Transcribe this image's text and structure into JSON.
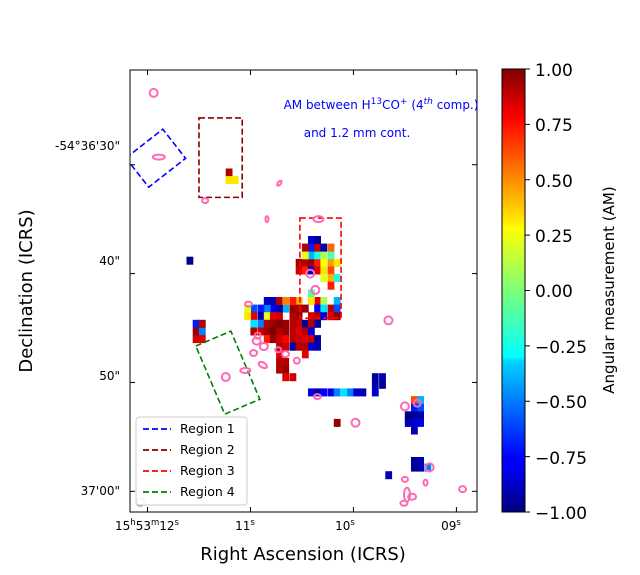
{
  "chart_data": {
    "type": "heatmap",
    "title": "",
    "xlabel": "Right Ascension (ICRS)",
    "ylabel": "Declination (ICRS)",
    "x_ticks": [
      {
        "sec": 12,
        "label_main": "15",
        "label_h": "h",
        "label_mid": "53",
        "label_m": "m",
        "label_end": "12",
        "label_s": "s"
      },
      {
        "sec": 11,
        "label_main": "11",
        "label_s": "s"
      },
      {
        "sec": 10,
        "label_main": "10",
        "label_s": "s"
      },
      {
        "sec": 9,
        "label_main": "09",
        "label_s": "s"
      }
    ],
    "y_ticks": [
      {
        "dec": 30,
        "label": "-54°36'30\""
      },
      {
        "dec": 40,
        "label": "40\""
      },
      {
        "dec": 50,
        "label": "50\""
      },
      {
        "dec": 60,
        "label": "37'00\""
      }
    ],
    "xlim_sec": [
      12.17,
      8.8
    ],
    "ylim_arcsec": [
      21.3,
      61.9
    ],
    "annotation": {
      "line1_pre": "AM between H",
      "line1_sup1": "13",
      "line1_mid": "CO",
      "line1_sup2": "+",
      "line1_open": " (4",
      "line1_sup3": "th",
      "line1_close": " comp.)",
      "line2": "and 1.2 mm cont."
    },
    "colorbar": {
      "label": "Angular measurement (AM)",
      "range": [
        -1.0,
        1.0
      ],
      "ticks": [
        "1.00",
        "0.75",
        "0.50",
        "0.25",
        "0.00",
        "−0.25",
        "−0.50",
        "−0.75",
        "−1.00"
      ],
      "tick_values": [
        1.0,
        0.75,
        0.5,
        0.25,
        0.0,
        -0.25,
        -0.5,
        -0.75,
        -1.0
      ]
    },
    "legend": {
      "position": "lower-left",
      "items": [
        {
          "label": "Region 1",
          "color": "#0000ff"
        },
        {
          "label": "Region 2",
          "color": "#8b0000"
        },
        {
          "label": "Region 3",
          "color": "#ff0000"
        },
        {
          "label": "Region 4",
          "color": "#008000"
        }
      ]
    },
    "regions": [
      {
        "name": "Region 1",
        "color": "#0000ff",
        "center": [
          11.92,
          29.4
        ],
        "size_arcsec": [
          4.3,
          3.4
        ],
        "angle_deg": -38
      },
      {
        "name": "Region 2",
        "color": "#8b0000",
        "ra": [
          11.5,
          11.08
        ],
        "dec": [
          25.7,
          33.0
        ]
      },
      {
        "name": "Region 3",
        "color": "#ff0000",
        "ra": [
          10.52,
          10.12
        ],
        "dec": [
          34.9,
          44.1
        ]
      },
      {
        "name": "Region 4",
        "color": "#008000",
        "center": [
          11.22,
          49.1
        ],
        "size_arcsec": [
          3.5,
          6.8
        ],
        "angle_deg": -23
      }
    ],
    "pixel_ra_size": 0.062,
    "pixel_dec_size": 0.7,
    "pixels": [
      [
        11.21,
        30.7,
        0.9
      ],
      [
        11.21,
        31.4,
        0.3
      ],
      [
        11.15,
        31.4,
        0.3
      ],
      [
        10.53,
        39.0,
        0.95
      ],
      [
        10.47,
        39.0,
        0.9
      ],
      [
        10.41,
        39.0,
        0.95
      ],
      [
        10.35,
        39.0,
        0.7
      ],
      [
        10.29,
        39.0,
        0.25
      ],
      [
        10.22,
        39.0,
        0.45
      ],
      [
        10.16,
        39.0,
        0.3
      ],
      [
        10.53,
        39.7,
        0.85
      ],
      [
        10.47,
        39.7,
        0.7
      ],
      [
        10.41,
        39.7,
        -0.85
      ],
      [
        10.35,
        39.7,
        0.8
      ],
      [
        10.29,
        39.7,
        0.3
      ],
      [
        10.22,
        39.7,
        0.6
      ],
      [
        10.41,
        38.3,
        -0.4
      ],
      [
        10.35,
        38.3,
        -0.2
      ],
      [
        10.22,
        38.3,
        -0.1
      ],
      [
        10.47,
        38.3,
        0.2
      ],
      [
        10.29,
        38.3,
        0.1
      ],
      [
        10.41,
        37.6,
        -0.7
      ],
      [
        10.35,
        37.6,
        0.85
      ],
      [
        10.29,
        37.6,
        -0.9
      ],
      [
        10.22,
        37.6,
        0.55
      ],
      [
        10.47,
        37.6,
        0.9
      ],
      [
        10.41,
        36.9,
        -0.85
      ],
      [
        10.35,
        36.9,
        -0.95
      ],
      [
        10.22,
        40.4,
        0.4
      ],
      [
        10.16,
        40.4,
        -0.2
      ],
      [
        10.29,
        40.4,
        0.2
      ],
      [
        10.22,
        41.1,
        0.7
      ],
      [
        10.41,
        41.8,
        -0.1
      ],
      [
        10.35,
        42.5,
        0.8
      ],
      [
        10.41,
        42.5,
        0.3
      ],
      [
        10.29,
        42.5,
        0.1
      ],
      [
        10.16,
        42.5,
        -0.4
      ],
      [
        10.53,
        42.5,
        0.4
      ],
      [
        10.47,
        43.2,
        0.95
      ],
      [
        10.35,
        43.2,
        -0.75
      ],
      [
        10.29,
        43.2,
        -0.3
      ],
      [
        10.22,
        43.2,
        0.9
      ],
      [
        10.16,
        43.2,
        -0.6
      ],
      [
        10.53,
        43.2,
        0.9
      ],
      [
        10.41,
        43.9,
        0.85
      ],
      [
        10.35,
        43.9,
        0.9
      ],
      [
        10.29,
        43.9,
        -0.8
      ],
      [
        10.22,
        43.9,
        0.8
      ],
      [
        10.16,
        43.9,
        0.95
      ],
      [
        10.53,
        43.9,
        0.95
      ],
      [
        10.59,
        43.9,
        0.9
      ],
      [
        10.59,
        43.2,
        0.95
      ],
      [
        10.66,
        43.2,
        -0.4
      ],
      [
        10.72,
        43.2,
        -0.9
      ],
      [
        10.78,
        43.2,
        -0.8
      ],
      [
        10.84,
        43.2,
        -0.5
      ],
      [
        10.9,
        43.2,
        -0.7
      ],
      [
        10.97,
        43.2,
        -0.6
      ],
      [
        11.03,
        43.2,
        0.2
      ],
      [
        10.97,
        43.9,
        0.8
      ],
      [
        11.03,
        43.9,
        0.3
      ],
      [
        10.9,
        43.9,
        -0.9
      ],
      [
        10.84,
        43.9,
        0.2
      ],
      [
        10.78,
        43.9,
        0.8
      ],
      [
        10.72,
        43.9,
        0.85
      ],
      [
        10.84,
        42.5,
        -0.85
      ],
      [
        10.78,
        42.5,
        -0.9
      ],
      [
        10.72,
        42.5,
        0.9
      ],
      [
        10.66,
        42.5,
        0.5
      ],
      [
        10.59,
        42.5,
        0.7
      ],
      [
        10.97,
        44.6,
        -0.3
      ],
      [
        10.9,
        44.6,
        -0.5
      ],
      [
        10.84,
        44.6,
        0.9
      ],
      [
        10.78,
        44.6,
        0.95
      ],
      [
        10.72,
        44.6,
        1.0
      ],
      [
        10.66,
        44.6,
        0.95
      ],
      [
        10.59,
        44.6,
        0.9
      ],
      [
        10.53,
        44.6,
        0.85
      ],
      [
        10.47,
        44.6,
        -0.95
      ],
      [
        10.41,
        44.6,
        0.9
      ],
      [
        10.35,
        44.6,
        -0.95
      ],
      [
        10.97,
        45.3,
        0.9
      ],
      [
        10.9,
        45.3,
        0.85
      ],
      [
        10.84,
        45.3,
        0.95
      ],
      [
        10.78,
        45.3,
        1.0
      ],
      [
        10.72,
        45.3,
        0.9
      ],
      [
        10.66,
        45.3,
        0.95
      ],
      [
        10.59,
        45.3,
        0.9
      ],
      [
        10.53,
        45.3,
        0.8
      ],
      [
        10.47,
        45.3,
        0.9
      ],
      [
        10.41,
        45.3,
        -0.8
      ],
      [
        10.84,
        46.0,
        0.7
      ],
      [
        10.78,
        46.0,
        0.95
      ],
      [
        10.72,
        46.0,
        0.85
      ],
      [
        10.66,
        46.0,
        0.75
      ],
      [
        10.59,
        46.0,
        0.9
      ],
      [
        10.53,
        46.0,
        0.85
      ],
      [
        10.47,
        46.0,
        0.8
      ],
      [
        10.41,
        46.0,
        0.85
      ],
      [
        10.35,
        46.0,
        -0.95
      ],
      [
        10.72,
        46.7,
        0.9
      ],
      [
        10.66,
        46.7,
        0.85
      ],
      [
        10.59,
        46.7,
        -0.9
      ],
      [
        10.53,
        46.7,
        0.9
      ],
      [
        10.47,
        46.7,
        0.9
      ],
      [
        10.41,
        46.7,
        -0.85
      ],
      [
        10.35,
        46.7,
        -0.9
      ],
      [
        10.47,
        47.4,
        0.8
      ],
      [
        10.72,
        47.4,
        0.8
      ],
      [
        10.66,
        48.1,
        0.9
      ],
      [
        10.72,
        48.1,
        0.9
      ],
      [
        10.66,
        48.8,
        0.95
      ],
      [
        10.72,
        48.8,
        0.9
      ],
      [
        10.66,
        49.5,
        0.8
      ],
      [
        10.59,
        49.5,
        0.85
      ],
      [
        11.59,
        38.8,
        -1.0
      ],
      [
        11.53,
        44.6,
        -0.7
      ],
      [
        11.53,
        45.3,
        0.95
      ],
      [
        11.47,
        45.3,
        -0.5
      ],
      [
        11.47,
        44.6,
        0.9
      ],
      [
        11.53,
        46.0,
        0.85
      ],
      [
        11.47,
        46.0,
        0.8
      ],
      [
        10.41,
        50.9,
        -0.8
      ],
      [
        10.35,
        50.9,
        -0.9
      ],
      [
        10.29,
        50.9,
        -0.75
      ],
      [
        10.22,
        50.9,
        -0.8
      ],
      [
        10.16,
        50.9,
        -0.5
      ],
      [
        10.09,
        50.9,
        -0.3
      ],
      [
        10.03,
        50.9,
        -0.5
      ],
      [
        9.97,
        50.9,
        -0.85
      ],
      [
        9.91,
        50.9,
        -0.9
      ],
      [
        10.16,
        53.7,
        0.95
      ],
      [
        9.79,
        49.5,
        -0.95
      ],
      [
        9.72,
        49.5,
        -0.9
      ],
      [
        9.79,
        50.2,
        -0.9
      ],
      [
        9.72,
        50.2,
        -0.95
      ],
      [
        9.79,
        50.9,
        -0.85
      ],
      [
        9.41,
        51.6,
        0.6
      ],
      [
        9.35,
        51.6,
        -0.4
      ],
      [
        9.41,
        52.3,
        -0.7
      ],
      [
        9.35,
        52.3,
        -0.6
      ],
      [
        9.47,
        53.0,
        -1.0
      ],
      [
        9.41,
        53.0,
        -0.95
      ],
      [
        9.35,
        53.0,
        -0.9
      ],
      [
        9.47,
        53.7,
        -0.9
      ],
      [
        9.41,
        53.7,
        -0.85
      ],
      [
        9.35,
        53.7,
        -0.8
      ],
      [
        9.41,
        54.4,
        -0.9
      ],
      [
        9.41,
        57.2,
        -0.95
      ],
      [
        9.35,
        57.2,
        -0.9
      ],
      [
        9.28,
        57.8,
        -0.5
      ],
      [
        9.35,
        57.8,
        -0.9
      ],
      [
        9.41,
        57.8,
        -0.95
      ],
      [
        9.66,
        58.5,
        -0.9
      ]
    ],
    "contours": [
      {
        "ra": 11.94,
        "dec": 23.4,
        "rx": 4,
        "ry": 4,
        "rot": 0
      },
      {
        "ra": 11.89,
        "dec": 29.3,
        "rx": 6,
        "ry": 2.5,
        "rot": 0
      },
      {
        "ra": 11.44,
        "dec": 33.3,
        "rx": 3,
        "ry": 2.5,
        "rot": 0
      },
      {
        "ra": 10.72,
        "dec": 31.7,
        "rx": 1.5,
        "ry": 3,
        "rot": 40
      },
      {
        "ra": 10.84,
        "dec": 35.0,
        "rx": 1.5,
        "ry": 3,
        "rot": 0
      },
      {
        "ra": 10.34,
        "dec": 35.0,
        "rx": 5,
        "ry": 3,
        "rot": 0
      },
      {
        "ra": 10.42,
        "dec": 40.0,
        "rx": 4,
        "ry": 4,
        "rot": 0
      },
      {
        "ra": 10.37,
        "dec": 41.5,
        "rx": 4,
        "ry": 4,
        "rot": 0
      },
      {
        "ra": 11.02,
        "dec": 42.8,
        "rx": 3.5,
        "ry": 2.5,
        "rot": 0
      },
      {
        "ra": 9.66,
        "dec": 44.3,
        "rx": 4,
        "ry": 4,
        "rot": 0
      },
      {
        "ra": 10.94,
        "dec": 46.2,
        "rx": 4,
        "ry": 3.5,
        "rot": 0
      },
      {
        "ra": 10.87,
        "dec": 46.7,
        "rx": 4,
        "ry": 3.5,
        "rot": 0
      },
      {
        "ra": 10.66,
        "dec": 47.4,
        "rx": 3.5,
        "ry": 3,
        "rot": 0
      },
      {
        "ra": 10.88,
        "dec": 48.4,
        "rx": 4.5,
        "ry": 2.5,
        "rot": 30
      },
      {
        "ra": 10.97,
        "dec": 47.3,
        "rx": 3.5,
        "ry": 3,
        "rot": 0
      },
      {
        "ra": 10.93,
        "dec": 45.7,
        "rx": 3,
        "ry": 3,
        "rot": 0
      },
      {
        "ra": 10.73,
        "dec": 47.0,
        "rx": 3,
        "ry": 2.5,
        "rot": 0
      },
      {
        "ra": 11.05,
        "dec": 48.9,
        "rx": 5,
        "ry": 2.5,
        "rot": 0
      },
      {
        "ra": 11.24,
        "dec": 49.5,
        "rx": 4,
        "ry": 4,
        "rot": 0
      },
      {
        "ra": 10.55,
        "dec": 48.0,
        "rx": 3,
        "ry": 3,
        "rot": 0
      },
      {
        "ra": 10.35,
        "dec": 51.3,
        "rx": 3.5,
        "ry": 2.5,
        "rot": 0
      },
      {
        "ra": 9.98,
        "dec": 53.7,
        "rx": 4,
        "ry": 4,
        "rot": 0
      },
      {
        "ra": 9.5,
        "dec": 52.2,
        "rx": 4,
        "ry": 4,
        "rot": 0
      },
      {
        "ra": 9.38,
        "dec": 51.9,
        "rx": 3.5,
        "ry": 3.5,
        "rot": 0
      },
      {
        "ra": 9.26,
        "dec": 57.8,
        "rx": 4,
        "ry": 4,
        "rot": 0
      },
      {
        "ra": 9.5,
        "dec": 58.9,
        "rx": 3,
        "ry": 2.5,
        "rot": 0
      },
      {
        "ra": 9.3,
        "dec": 59.2,
        "rx": 2,
        "ry": 3,
        "rot": 0
      },
      {
        "ra": 9.48,
        "dec": 60.3,
        "rx": 3,
        "ry": 7,
        "rot": 0
      },
      {
        "ra": 9.43,
        "dec": 60.5,
        "rx": 4,
        "ry": 3,
        "rot": 0
      },
      {
        "ra": 9.51,
        "dec": 61.1,
        "rx": 3.5,
        "ry": 2.5,
        "rot": 0
      },
      {
        "ra": 8.94,
        "dec": 59.8,
        "rx": 3.5,
        "ry": 3,
        "rot": 0
      }
    ],
    "beam": {
      "ra": 12.07,
      "dec": 61.0,
      "r": 4
    }
  }
}
